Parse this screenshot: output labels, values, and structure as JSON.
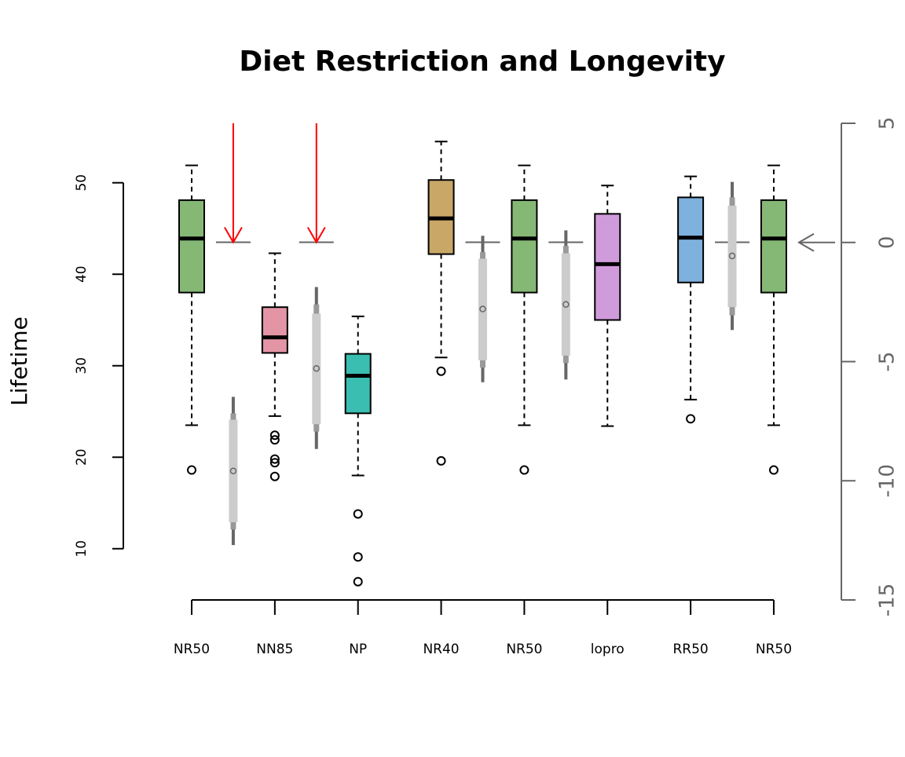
{
  "chart_data": {
    "type": "boxplot",
    "title": "Diet Restriction and Longevity",
    "y_label": "Lifetime",
    "categories": [
      "NR50",
      "NN85",
      "NP",
      "NR40",
      "NR50",
      "lopro",
      "RR50",
      "NR50"
    ],
    "boxes": [
      {
        "color": "#86b875",
        "whisker_low": 23.5,
        "q1": 38.0,
        "median": 43.9,
        "q3": 48.1,
        "whisker_high": 51.9,
        "outliers": [
          18.6
        ]
      },
      {
        "color": "#e495a5",
        "whisker_low": 24.5,
        "q1": 31.4,
        "median": 33.1,
        "q3": 36.4,
        "whisker_high": 42.3,
        "outliers": [
          22.4,
          21.9,
          19.8,
          19.4,
          17.9
        ]
      },
      {
        "color": "#39beb1",
        "whisker_low": 18.0,
        "q1": 24.8,
        "median": 28.9,
        "q3": 31.3,
        "whisker_high": 35.4,
        "outliers": [
          13.8,
          9.1,
          6.4
        ]
      },
      {
        "color": "#c9a767",
        "whisker_low": 30.9,
        "q1": 42.2,
        "median": 46.1,
        "q3": 50.3,
        "whisker_high": 54.5,
        "outliers": [
          29.4,
          19.6
        ]
      },
      {
        "color": "#86b875",
        "whisker_low": 23.5,
        "q1": 38.0,
        "median": 43.9,
        "q3": 48.1,
        "whisker_high": 51.9,
        "outliers": [
          18.6
        ]
      },
      {
        "color": "#d09bdb",
        "whisker_low": 23.4,
        "q1": 35.0,
        "median": 41.1,
        "q3": 46.6,
        "whisker_high": 49.7,
        "outliers": []
      },
      {
        "color": "#7fb1df",
        "whisker_low": 26.3,
        "q1": 39.1,
        "median": 44.0,
        "q3": 48.4,
        "whisker_high": 50.7,
        "outliers": [
          24.2
        ]
      },
      {
        "color": "#86b875",
        "whisker_low": 23.5,
        "q1": 38.0,
        "median": 43.9,
        "q3": 48.1,
        "whisker_high": 51.9,
        "outliers": [
          18.6
        ]
      }
    ],
    "gap_summaries": [
      {
        "low": 10.4,
        "dark_low": 12.1,
        "light_low": 12.9,
        "center": 18.5,
        "light_high": 24.1,
        "dark_high": 24.8,
        "high": 26.6
      },
      {
        "low": 20.9,
        "dark_low": 22.8,
        "light_low": 23.6,
        "center": 29.7,
        "light_high": 35.7,
        "dark_high": 36.7,
        "high": 38.6
      },
      null,
      {
        "low": 28.2,
        "dark_low": 29.8,
        "light_low": 30.6,
        "center": 36.2,
        "light_high": 41.7,
        "dark_high": 42.4,
        "high": 44.2
      },
      {
        "low": 28.5,
        "dark_low": 30.3,
        "light_low": 31.1,
        "center": 36.7,
        "light_high": 42.3,
        "dark_high": 43.1,
        "high": 44.8
      },
      null,
      {
        "low": 33.9,
        "dark_low": 35.5,
        "light_low": 36.4,
        "center": 42.0,
        "light_high": 47.5,
        "dark_high": 48.4,
        "high": 50.1
      }
    ],
    "reference_line": 43.5,
    "arrow_gaps": [
      true,
      true,
      false,
      false,
      false,
      false,
      false
    ],
    "arrow_color": "#ff0000",
    "y2_arrow": 0,
    "ylim": [
      4.4,
      56.5
    ],
    "yticks": [
      10,
      20,
      30,
      40,
      50
    ],
    "y2lim": [
      -15,
      5
    ],
    "y2ticks": [
      -15,
      -10,
      -5,
      0,
      5
    ]
  }
}
